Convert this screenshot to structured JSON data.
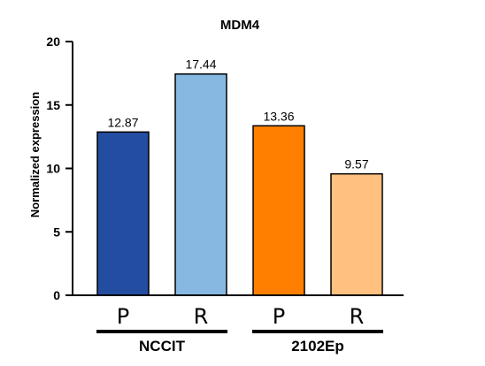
{
  "chart_data": {
    "type": "bar",
    "title": "MDM4",
    "ylabel": "Normalized expression",
    "xlabel": "",
    "ylim": [
      0,
      20
    ],
    "yticks": [
      0,
      5,
      10,
      15,
      20
    ],
    "grid": false,
    "categories": [
      "P",
      "R",
      "P",
      "R"
    ],
    "values": [
      12.87,
      17.44,
      13.36,
      9.57
    ],
    "value_labels": [
      "12.87",
      "17.44",
      "13.36",
      "9.57"
    ],
    "colors": [
      "#234da0",
      "#86b8e2",
      "#ff8000",
      "#ffc080"
    ],
    "groups": [
      {
        "label": "NCCIT",
        "members": [
          0,
          1
        ]
      },
      {
        "label": "2102Ep",
        "members": [
          2,
          3
        ]
      }
    ]
  }
}
